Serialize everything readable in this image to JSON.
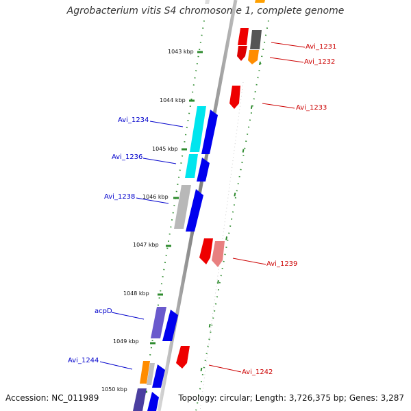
{
  "title": "Agrobacterium vitis S4 chromosome 1, complete genome",
  "accession": "Accession: NC_011989",
  "topology": "Topology: circular; Length: 3,726,375 bp; Genes: 3,287",
  "ticks": [
    "1043 kbp",
    "1044 kbp",
    "1045 kbp",
    "1046 kbp",
    "1047 kbp",
    "1048 kbp",
    "1049 kbp",
    "1050 kbp"
  ],
  "gene_labels": [
    {
      "text": "Avi_1231",
      "side": "right",
      "color": "#cc0000"
    },
    {
      "text": "Avi_1232",
      "side": "right",
      "color": "#cc0000"
    },
    {
      "text": "Avi_1233",
      "side": "right",
      "color": "#cc0000"
    },
    {
      "text": "Avi_1234",
      "side": "left",
      "color": "#0000cc"
    },
    {
      "text": "Avi_1236",
      "side": "left",
      "color": "#0000cc"
    },
    {
      "text": "Avi_1238",
      "side": "left",
      "color": "#0000cc"
    },
    {
      "text": "Avi_1239",
      "side": "right",
      "color": "#cc0000"
    },
    {
      "text": "acpD",
      "side": "left",
      "color": "#0000cc"
    },
    {
      "text": "Avi_1242",
      "side": "right",
      "color": "#cc0000"
    },
    {
      "text": "Avi_1244",
      "side": "left",
      "color": "#0000cc"
    }
  ],
  "colors": {
    "backbone": "#8c8c8c",
    "dots": "#2e8b2e",
    "forward_cds": "#0000ee",
    "reverse_cds": "#ee0000",
    "cyan_cds": "#00d8e8",
    "gray_cds": "#b8b8b8",
    "purple_cds": "#6a5acd",
    "orange_cds": "#ff8c00",
    "dark_gray_cds": "#555555",
    "pink_cds": "#e88080",
    "left_label": "#0000cc",
    "right_label": "#cc0000"
  }
}
